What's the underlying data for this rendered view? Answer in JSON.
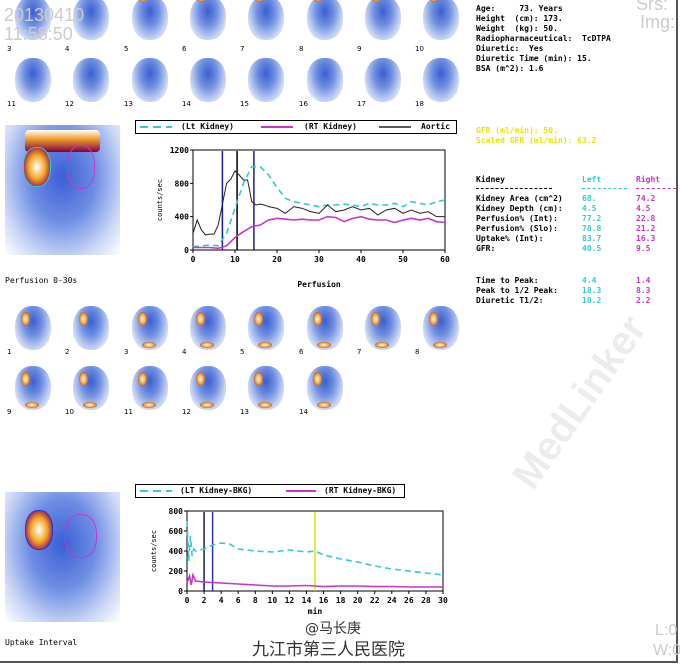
{
  "header": {
    "date": "20130410",
    "time": "11:58:50",
    "srs": "Srs:",
    "img": "Img:"
  },
  "patient": {
    "lines": [
      "Age:     73. Years",
      "Height  (cm): 173.",
      "Weight  (kg): 50.",
      "Radiopharmaceutical:  TcDTPA",
      "Diuretic:  Yes",
      "Diuretic Time (min): 15.",
      "BSA (m^2): 1.6"
    ]
  },
  "gfr": {
    "gfr": "GFR (ml/min): 50.",
    "scaled": "Scaled GFR (ml/min): 63.2"
  },
  "kidney_table": {
    "headers": [
      "Kidney",
      "Left",
      "Right"
    ],
    "rows": [
      {
        "label": "Kidney Area (cm^2)",
        "left": "68.",
        "right": "74.2"
      },
      {
        "label": "Kidney Depth (cm):",
        "left": "4.5",
        "right": "4.5"
      },
      {
        "label": "Perfusion% (Int):",
        "left": "77.2",
        "right": "22.8"
      },
      {
        "label": "Perfusion% (Slo):",
        "left": "78.8",
        "right": "21.2"
      },
      {
        "label": "Uptake% (Int):",
        "left": "83.7",
        "right": "16.3"
      },
      {
        "label": "GFR:",
        "left": "40.5",
        "right": "9.5"
      }
    ],
    "rows2": [
      {
        "label": "Time to Peak:",
        "left": "4.4",
        "right": "1.4"
      },
      {
        "label": "Peak to 1/2 Peak:",
        "left": "18.3",
        "right": "8.3"
      },
      {
        "label": "Diuretic T1/2:",
        "left": "10.2",
        "right": "2.2"
      }
    ]
  },
  "colors": {
    "left": "#33cccc",
    "right": "#cc33cc",
    "aortic": "#222222",
    "gfr": "#e6e600"
  },
  "thumbs_top": [
    "3",
    "4",
    "5",
    "6",
    "7",
    "8",
    "9",
    "10",
    "11",
    "12",
    "13",
    "14",
    "15",
    "16",
    "17",
    "18"
  ],
  "thumbs_perf": [
    "1",
    "2",
    "3",
    "4",
    "5",
    "6",
    "7",
    "8",
    "9",
    "10",
    "11",
    "12",
    "13",
    "14"
  ],
  "labels": {
    "perfusion_img": "Perfusion 0-30s",
    "uptake_img": "Uptake Interval",
    "signature": "@马长庚",
    "hospital": "九江市第三人民医院",
    "l": "L:0",
    "w": "W:0",
    "watermark": "MedLinker"
  },
  "chart_data": [
    {
      "type": "line",
      "title": "",
      "xlabel": "Perfusion",
      "ylabel": "counts/sec",
      "xlim": [
        0,
        60
      ],
      "ylim": [
        0,
        1200
      ],
      "xticks": [
        0,
        10,
        20,
        30,
        40,
        50,
        60
      ],
      "yticks": [
        0,
        400,
        800,
        1200
      ],
      "legend": [
        "(Lt Kidney)",
        "(RT Kidney)",
        "Aortic"
      ],
      "markers": [
        {
          "x": 7,
          "color": "#1a1aa0"
        },
        {
          "x": 10.5,
          "color": "#000000"
        },
        {
          "x": 14.5,
          "color": "#1a1aa0"
        }
      ],
      "series": [
        {
          "name": "(Lt Kidney)",
          "color": "#33cccc",
          "dash": true,
          "x": [
            0,
            4,
            6,
            8,
            10,
            12,
            14,
            16,
            18,
            20,
            22,
            24,
            26,
            28,
            30,
            32,
            34,
            36,
            38,
            40,
            42,
            44,
            46,
            48,
            50,
            52,
            54,
            56,
            58,
            60
          ],
          "y": [
            40,
            60,
            50,
            200,
            500,
            800,
            1000,
            1000,
            900,
            750,
            620,
            580,
            560,
            540,
            520,
            540,
            540,
            550,
            540,
            520,
            560,
            540,
            540,
            560,
            520,
            580,
            560,
            540,
            580,
            600
          ]
        },
        {
          "name": "(RT Kidney)",
          "color": "#cc33cc",
          "dash": false,
          "x": [
            0,
            4,
            6,
            8,
            10,
            12,
            14,
            16,
            18,
            20,
            22,
            24,
            26,
            28,
            30,
            32,
            34,
            36,
            38,
            40,
            42,
            44,
            46,
            48,
            50,
            52,
            54,
            56,
            58,
            60
          ],
          "y": [
            30,
            30,
            20,
            50,
            150,
            220,
            280,
            300,
            360,
            380,
            370,
            360,
            370,
            360,
            360,
            400,
            390,
            340,
            380,
            400,
            370,
            360,
            360,
            330,
            360,
            380,
            360,
            380,
            340,
            330
          ]
        },
        {
          "name": "Aortic",
          "color": "#222222",
          "dash": false,
          "x": [
            0,
            1,
            2,
            3,
            4,
            5,
            6,
            7,
            8,
            9,
            10,
            11,
            12,
            13,
            14,
            15,
            16,
            17,
            18,
            20,
            22,
            24,
            26,
            28,
            30,
            32,
            34,
            36,
            38,
            40,
            42,
            44,
            46,
            48,
            50,
            52,
            54,
            56,
            58,
            60
          ],
          "y": [
            200,
            360,
            240,
            180,
            190,
            190,
            300,
            550,
            800,
            850,
            950,
            900,
            840,
            840,
            580,
            540,
            550,
            540,
            520,
            500,
            440,
            520,
            500,
            460,
            440,
            540,
            460,
            480,
            520,
            480,
            500,
            420,
            480,
            500,
            440,
            480,
            440,
            460,
            400,
            400
          ]
        }
      ]
    },
    {
      "type": "line",
      "title": "",
      "xlabel": "min",
      "ylabel": "counts/sec",
      "xlim": [
        0,
        30
      ],
      "ylim": [
        0,
        800
      ],
      "xticks": [
        0,
        2,
        4,
        6,
        8,
        10,
        12,
        14,
        16,
        18,
        20,
        22,
        24,
        26,
        28,
        30
      ],
      "yticks": [
        0,
        200,
        400,
        600,
        800
      ],
      "legend": [
        "(LT Kidney-BKG)",
        "(RT Kidney-BKG)"
      ],
      "markers": [
        {
          "x": 2,
          "color": "#1a1a60"
        },
        {
          "x": 3,
          "color": "#3333aa"
        },
        {
          "x": 15,
          "color": "#e6e600"
        }
      ],
      "series": [
        {
          "name": "(LT Kidney-BKG)",
          "color": "#33cccc",
          "dash": true,
          "x": [
            0,
            0.2,
            0.4,
            0.6,
            0.8,
            1,
            2,
            3,
            4,
            5,
            6,
            8,
            10,
            12,
            14,
            15,
            16,
            18,
            20,
            22,
            24,
            26,
            28,
            30
          ],
          "y": [
            700,
            300,
            550,
            350,
            420,
            400,
            420,
            460,
            480,
            470,
            420,
            400,
            390,
            410,
            390,
            400,
            360,
            320,
            290,
            250,
            220,
            200,
            180,
            160
          ]
        },
        {
          "name": "(RT Kidney-BKG)",
          "color": "#cc33cc",
          "dash": false,
          "x": [
            0,
            0.3,
            0.5,
            0.7,
            1,
            2,
            4,
            6,
            8,
            10,
            12,
            14,
            16,
            18,
            20,
            22,
            24,
            26,
            28,
            30
          ],
          "y": [
            80,
            150,
            60,
            160,
            100,
            90,
            80,
            70,
            60,
            50,
            50,
            55,
            45,
            50,
            50,
            45,
            45,
            40,
            40,
            40
          ]
        }
      ]
    }
  ]
}
